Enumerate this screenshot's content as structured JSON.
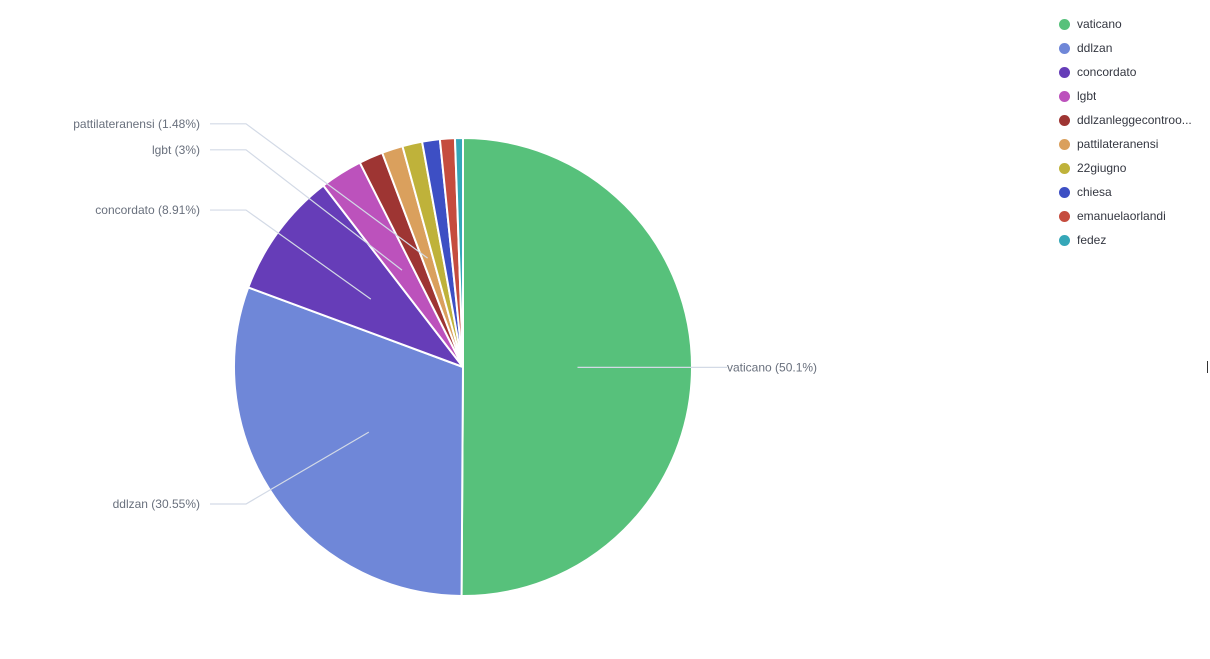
{
  "chart_data": {
    "type": "pie",
    "categories": [
      "vaticano",
      "ddlzan",
      "concordato",
      "lgbt",
      "ddlzanleggecontroo...",
      "pattilateranensi",
      "22giugno",
      "chiesa",
      "emanuelaorlandi",
      "fedez"
    ],
    "values": [
      50.1,
      30.55,
      8.91,
      3,
      1.7,
      1.48,
      1.4,
      1.25,
      1.05,
      0.56
    ],
    "colors": [
      "#57c17b",
      "#6f87d8",
      "#663db8",
      "#bc52bc",
      "#9e3533",
      "#daa05d",
      "#bfb23a",
      "#3d4fc4",
      "#c54c3e",
      "#35a7b8"
    ],
    "callouts": [
      {
        "index": 0,
        "text": "vaticano (50.1%)"
      },
      {
        "index": 1,
        "text": "ddlzan (30.55%)"
      },
      {
        "index": 2,
        "text": "concordato (8.91%)"
      },
      {
        "index": 3,
        "text": "lgbt (3%)"
      },
      {
        "index": 5,
        "text": "pattilateranensi (1.48%)"
      }
    ],
    "legend_position": "top-right"
  }
}
